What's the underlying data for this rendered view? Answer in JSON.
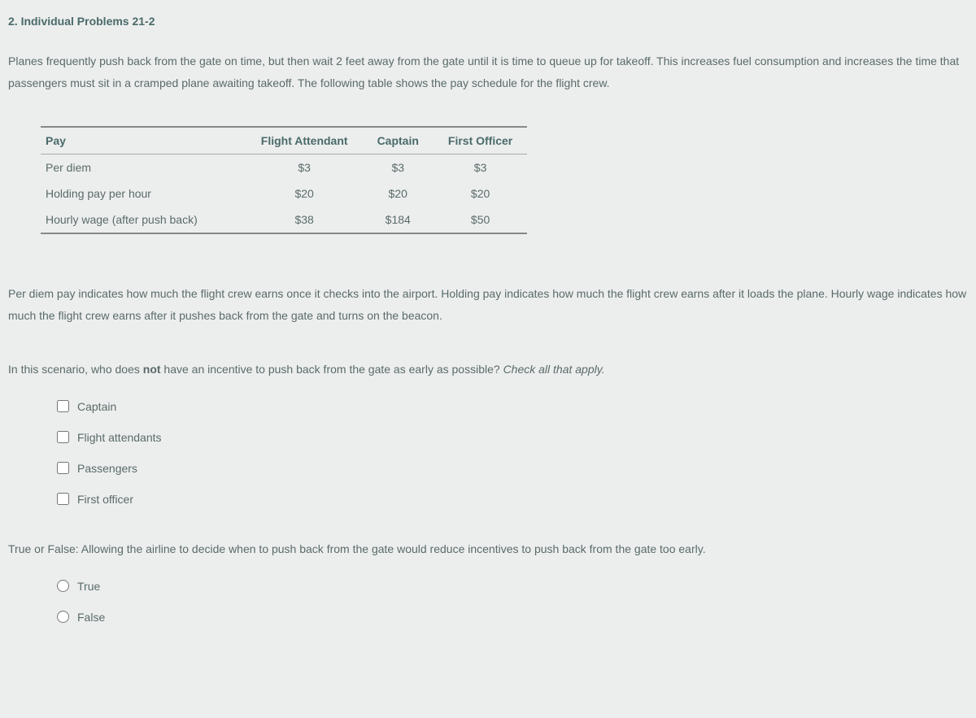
{
  "title": "2. Individual Problems 21-2",
  "intro": "Planes frequently push back from the gate on time, but then wait 2 feet away from the gate until it is time to queue up for takeoff. This increases fuel consumption and increases the time that passengers must sit in a cramped plane awaiting takeoff. The following table shows the pay schedule for the flight crew.",
  "table": {
    "headers": [
      "Pay",
      "Flight Attendant",
      "Captain",
      "First Officer"
    ],
    "rows": [
      [
        "Per diem",
        "$3",
        "$3",
        "$3"
      ],
      [
        "Holding pay per hour",
        "$20",
        "$20",
        "$20"
      ],
      [
        "Hourly wage (after push back)",
        "$38",
        "$184",
        "$50"
      ]
    ]
  },
  "explain": "Per diem pay indicates how much the flight crew earns once it checks into the airport. Holding pay indicates how much the flight crew earns after it loads the plane. Hourly wage indicates how much the flight crew earns after it pushes back from the gate and turns on the beacon.",
  "q1_pre": "In this scenario, who does ",
  "q1_bold": "not",
  "q1_post": " have an incentive to push back from the gate as early as possible? ",
  "q1_hint": "Check all that apply.",
  "q1_options": [
    "Captain",
    "Flight attendants",
    "Passengers",
    "First officer"
  ],
  "q2": "True or False: Allowing the airline to decide when to push back from the gate would reduce incentives to push back from the gate too early.",
  "q2_options": [
    "True",
    "False"
  ]
}
